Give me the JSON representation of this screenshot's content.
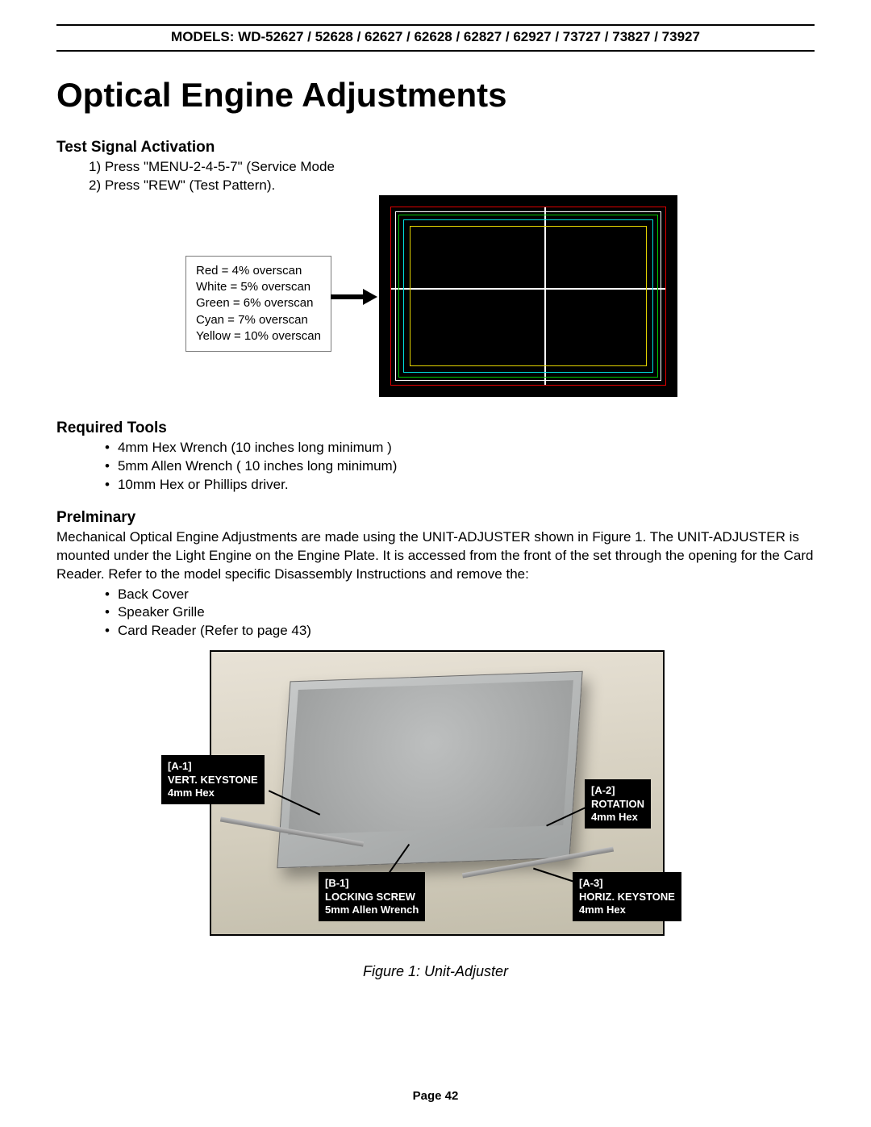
{
  "header": {
    "models": "MODELS: WD-52627 / 52628 / 62627 / 62628 / 62827 / 62927 / 73727 / 73827 / 73927"
  },
  "title": "Optical Engine Adjustments",
  "test_signal": {
    "heading": "Test Signal Activation",
    "steps": [
      "1)  Press \"MENU-2-4-5-7\" (Service Mode",
      "2)  Press \"REW\" (Test Pattern)."
    ],
    "overscan_lines": [
      "Red = 4% overscan",
      "White = 5% overscan",
      "Green = 6% overscan",
      "Cyan = 7% overscan",
      "Yellow = 10% overscan"
    ],
    "pattern_rects": [
      {
        "color": "#e5d400",
        "inset": 38
      },
      {
        "color": "#00e0e0",
        "inset": 30
      },
      {
        "color": "#00c800",
        "inset": 24
      },
      {
        "color": "#ffffff",
        "inset": 20
      },
      {
        "color": "#e00000",
        "inset": 14
      }
    ]
  },
  "required_tools": {
    "heading": "Required Tools",
    "items": [
      "4mm  Hex Wrench (10 inches long minimum )",
      "5mm Allen Wrench ( 10 inches long minimum)",
      "10mm Hex or Phillips driver."
    ]
  },
  "preliminary": {
    "heading": "Prelminary",
    "paragraph": "Mechanical Optical Engine Adjustments are made using the UNIT-ADJUSTER shown in Figure 1.  The UNIT-ADJUSTER is mounted under the Light Engine on the Engine Plate. It is accessed from the front of the set through the opening for the Card Reader.  Refer to the model specific Disassembly Instructions and remove the:",
    "items": [
      "Back Cover",
      "Speaker Grille",
      "Card Reader (Refer to page 43)"
    ]
  },
  "figure1": {
    "caption": "Figure 1:  Unit-Adjuster",
    "callouts": {
      "a1": {
        "id": "[A-1]",
        "label": "VERT. KEYSTONE",
        "tool": "4mm Hex"
      },
      "b1": {
        "id": "[B-1]",
        "label": "LOCKING SCREW",
        "tool": "5mm Allen Wrench"
      },
      "a2": {
        "id": "[A-2]",
        "label": "ROTATION",
        "tool": "4mm Hex"
      },
      "a3": {
        "id": "[A-3]",
        "label": "HORIZ. KEYSTONE",
        "tool": "4mm Hex"
      }
    }
  },
  "footer": {
    "page": "Page 42"
  }
}
